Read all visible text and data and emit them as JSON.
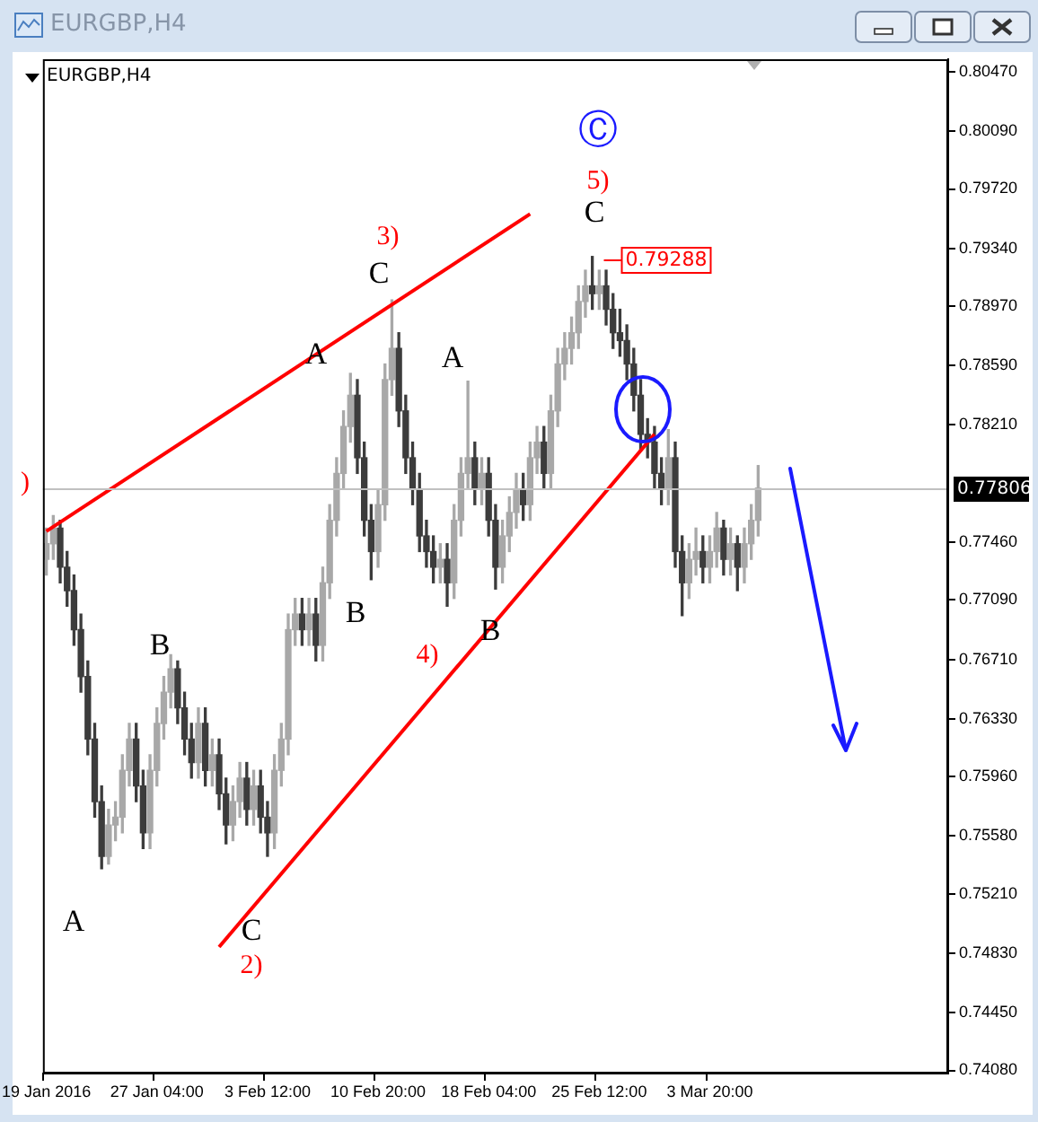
{
  "chart_data": {
    "type": "candlestick",
    "title": "EURGBP,H4",
    "subtitle": "EURGBP,H4",
    "categories": [
      "19 Jan 2016",
      null,
      null,
      null,
      null,
      null,
      null,
      null,
      null,
      null,
      null,
      null,
      null,
      null,
      null,
      null,
      "27 Jan 04:00",
      null,
      null,
      null,
      null,
      null,
      null,
      null,
      null,
      null,
      null,
      null,
      null,
      null,
      null,
      null,
      "3 Feb 12:00",
      null,
      null,
      null,
      null,
      null,
      null,
      null,
      null,
      null,
      null,
      null,
      null,
      null,
      null,
      null,
      "10 Feb 20:00",
      null,
      null,
      null,
      null,
      null,
      null,
      null,
      null,
      null,
      null,
      null,
      null,
      null,
      null,
      null,
      "18 Feb 04:00",
      null,
      null,
      null,
      null,
      null,
      null,
      null,
      null,
      null,
      null,
      null,
      null,
      null,
      null,
      null,
      "25 Feb 12:00",
      null,
      null,
      null,
      null,
      null,
      null,
      null,
      null,
      null,
      null,
      null,
      null,
      null,
      null,
      null,
      "3 Mar 20:00",
      null,
      null,
      null,
      null,
      null,
      null,
      null,
      null,
      null,
      null,
      null,
      null,
      null,
      null,
      null,
      null,
      null,
      null,
      null,
      null,
      null,
      null,
      null,
      null,
      null,
      null,
      null,
      null,
      null,
      null,
      null,
      null,
      null,
      null
    ],
    "ohlc": [
      [
        0.7735,
        0.7755,
        0.7725,
        0.7745
      ],
      [
        0.7745,
        0.7763,
        0.7735,
        0.7755
      ],
      [
        0.7755,
        0.776,
        0.772,
        0.773
      ],
      [
        0.773,
        0.774,
        0.7705,
        0.7715
      ],
      [
        0.7715,
        0.7725,
        0.768,
        0.769
      ],
      [
        0.769,
        0.77,
        0.765,
        0.766
      ],
      [
        0.766,
        0.767,
        0.761,
        0.762
      ],
      [
        0.762,
        0.763,
        0.757,
        0.758
      ],
      [
        0.758,
        0.759,
        0.7537,
        0.7545
      ],
      [
        0.7545,
        0.7575,
        0.754,
        0.7565
      ],
      [
        0.7565,
        0.758,
        0.7555,
        0.757
      ],
      [
        0.757,
        0.761,
        0.756,
        0.76
      ],
      [
        0.76,
        0.763,
        0.759,
        0.762
      ],
      [
        0.762,
        0.763,
        0.758,
        0.759
      ],
      [
        0.759,
        0.76,
        0.755,
        0.756
      ],
      [
        0.756,
        0.761,
        0.755,
        0.76
      ],
      [
        0.76,
        0.764,
        0.759,
        0.763
      ],
      [
        0.763,
        0.766,
        0.762,
        0.765
      ],
      [
        0.765,
        0.7674,
        0.764,
        0.7665
      ],
      [
        0.7665,
        0.767,
        0.763,
        0.764
      ],
      [
        0.764,
        0.765,
        0.761,
        0.762
      ],
      [
        0.762,
        0.763,
        0.7595,
        0.7605
      ],
      [
        0.7605,
        0.764,
        0.7595,
        0.763
      ],
      [
        0.763,
        0.764,
        0.759,
        0.76
      ],
      [
        0.76,
        0.762,
        0.759,
        0.761
      ],
      [
        0.761,
        0.762,
        0.7575,
        0.7585
      ],
      [
        0.7585,
        0.7595,
        0.7553,
        0.7565
      ],
      [
        0.7565,
        0.759,
        0.7555,
        0.758
      ],
      [
        0.758,
        0.7605,
        0.757,
        0.7595
      ],
      [
        0.7595,
        0.7605,
        0.7565,
        0.7575
      ],
      [
        0.7575,
        0.76,
        0.7565,
        0.759
      ],
      [
        0.759,
        0.76,
        0.756,
        0.757
      ],
      [
        0.757,
        0.758,
        0.7545,
        0.756
      ],
      [
        0.756,
        0.761,
        0.755,
        0.76
      ],
      [
        0.76,
        0.763,
        0.759,
        0.762
      ],
      [
        0.762,
        0.77,
        0.761,
        0.769
      ],
      [
        0.769,
        0.771,
        0.768,
        0.77
      ],
      [
        0.77,
        0.771,
        0.768,
        0.769
      ],
      [
        0.769,
        0.771,
        0.768,
        0.77
      ],
      [
        0.77,
        0.771,
        0.767,
        0.768
      ],
      [
        0.768,
        0.773,
        0.767,
        0.772
      ],
      [
        0.772,
        0.777,
        0.771,
        0.776
      ],
      [
        0.776,
        0.78,
        0.775,
        0.779
      ],
      [
        0.779,
        0.783,
        0.778,
        0.782
      ],
      [
        0.782,
        0.7854,
        0.781,
        0.784
      ],
      [
        0.784,
        0.785,
        0.779,
        0.78
      ],
      [
        0.78,
        0.781,
        0.775,
        0.776
      ],
      [
        0.776,
        0.777,
        0.7722,
        0.774
      ],
      [
        0.774,
        0.778,
        0.773,
        0.777
      ],
      [
        0.777,
        0.786,
        0.776,
        0.785
      ],
      [
        0.785,
        0.7901,
        0.784,
        0.787
      ],
      [
        0.787,
        0.788,
        0.782,
        0.783
      ],
      [
        0.783,
        0.784,
        0.779,
        0.78
      ],
      [
        0.78,
        0.781,
        0.777,
        0.778
      ],
      [
        0.778,
        0.779,
        0.774,
        0.775
      ],
      [
        0.775,
        0.776,
        0.773,
        0.774
      ],
      [
        0.774,
        0.775,
        0.772,
        0.773
      ],
      [
        0.773,
        0.7745,
        0.772,
        0.7735
      ],
      [
        0.7735,
        0.7745,
        0.7705,
        0.772
      ],
      [
        0.772,
        0.777,
        0.771,
        0.776
      ],
      [
        0.776,
        0.78,
        0.775,
        0.779
      ],
      [
        0.779,
        0.7849,
        0.778,
        0.78
      ],
      [
        0.78,
        0.781,
        0.777,
        0.778
      ],
      [
        0.778,
        0.78,
        0.777,
        0.779
      ],
      [
        0.779,
        0.78,
        0.775,
        0.776
      ],
      [
        0.776,
        0.777,
        0.7716,
        0.773
      ],
      [
        0.773,
        0.776,
        0.772,
        0.775
      ],
      [
        0.775,
        0.7775,
        0.774,
        0.7765
      ],
      [
        0.7765,
        0.779,
        0.7755,
        0.778
      ],
      [
        0.778,
        0.779,
        0.776,
        0.777
      ],
      [
        0.777,
        0.781,
        0.776,
        0.78
      ],
      [
        0.78,
        0.782,
        0.779,
        0.781
      ],
      [
        0.781,
        0.782,
        0.778,
        0.779
      ],
      [
        0.779,
        0.784,
        0.778,
        0.783
      ],
      [
        0.783,
        0.787,
        0.782,
        0.786
      ],
      [
        0.786,
        0.788,
        0.785,
        0.787
      ],
      [
        0.787,
        0.789,
        0.786,
        0.788
      ],
      [
        0.788,
        0.791,
        0.787,
        0.79
      ],
      [
        0.79,
        0.792,
        0.789,
        0.791
      ],
      [
        0.791,
        0.79288,
        0.7895,
        0.7905
      ],
      [
        0.7905,
        0.792,
        0.7895,
        0.791
      ],
      [
        0.791,
        0.792,
        0.7885,
        0.7895
      ],
      [
        0.7895,
        0.7905,
        0.787,
        0.788
      ],
      [
        0.788,
        0.7895,
        0.7865,
        0.7875
      ],
      [
        0.7875,
        0.7885,
        0.785,
        0.786
      ],
      [
        0.786,
        0.787,
        0.783,
        0.784
      ],
      [
        0.784,
        0.785,
        0.7805,
        0.7815
      ],
      [
        0.7815,
        0.7825,
        0.78,
        0.781
      ],
      [
        0.781,
        0.782,
        0.778,
        0.779
      ],
      [
        0.779,
        0.78,
        0.777,
        0.778
      ],
      [
        0.778,
        0.7818,
        0.777,
        0.78
      ],
      [
        0.78,
        0.781,
        0.773,
        0.774
      ],
      [
        0.774,
        0.775,
        0.7699,
        0.772
      ],
      [
        0.772,
        0.7745,
        0.771,
        0.7735
      ],
      [
        0.7735,
        0.7755,
        0.7725,
        0.774
      ],
      [
        0.774,
        0.775,
        0.772,
        0.773
      ],
      [
        0.773,
        0.775,
        0.772,
        0.774
      ],
      [
        0.774,
        0.7765,
        0.773,
        0.7755
      ],
      [
        0.7755,
        0.776,
        0.7725,
        0.7735
      ],
      [
        0.7735,
        0.7755,
        0.7725,
        0.7745
      ],
      [
        0.7745,
        0.775,
        0.7715,
        0.773
      ],
      [
        0.773,
        0.7755,
        0.772,
        0.7745
      ],
      [
        0.7745,
        0.777,
        0.7735,
        0.776
      ],
      [
        0.776,
        0.7795,
        0.775,
        0.77806
      ],
      null,
      null,
      null,
      null,
      null,
      null,
      null,
      null,
      null,
      null,
      null,
      null,
      null,
      null,
      null,
      null,
      null,
      null,
      null,
      null,
      null,
      null,
      null,
      null,
      null,
      null,
      null
    ],
    "series": [
      {
        "type": "line",
        "color": "#ff0000",
        "values": [
          0.7753,
          null,
          null,
          null,
          null,
          null,
          null,
          null,
          null,
          null,
          null,
          null,
          null,
          null,
          null,
          null,
          null,
          null,
          null,
          null,
          null,
          null,
          null,
          null,
          null,
          null,
          null,
          null,
          null,
          null,
          null,
          null,
          null,
          null,
          null,
          null,
          null,
          null,
          null,
          null,
          null,
          null,
          null,
          null,
          null,
          null,
          null,
          null,
          null,
          null,
          null,
          null,
          null,
          null,
          null,
          null,
          null,
          null,
          null,
          null,
          null,
          null,
          null,
          null,
          null,
          null,
          null,
          null,
          null,
          null,
          0.7956,
          null,
          null,
          null,
          null,
          null,
          null,
          null,
          null,
          null,
          null,
          null,
          null,
          null,
          null,
          null,
          null,
          null,
          null,
          null,
          null,
          null,
          null,
          null,
          null,
          null,
          null,
          null,
          null,
          null,
          null,
          null,
          null,
          null,
          null,
          null,
          null,
          null,
          null,
          null,
          null,
          null,
          null,
          null,
          null,
          null,
          null,
          null,
          null,
          null,
          null,
          null,
          null,
          null,
          null,
          null,
          null,
          null,
          null,
          null,
          null
        ]
      },
      {
        "type": "line",
        "color": "#ff0000",
        "values": [
          null,
          null,
          null,
          null,
          null,
          null,
          null,
          null,
          null,
          null,
          null,
          null,
          null,
          null,
          null,
          null,
          null,
          null,
          null,
          null,
          null,
          null,
          null,
          null,
          null,
          0.7487,
          null,
          null,
          null,
          null,
          null,
          null,
          null,
          null,
          null,
          null,
          null,
          null,
          null,
          null,
          null,
          null,
          null,
          null,
          null,
          null,
          null,
          null,
          null,
          null,
          null,
          null,
          null,
          null,
          null,
          null,
          null,
          null,
          null,
          null,
          null,
          null,
          null,
          null,
          null,
          null,
          null,
          null,
          null,
          null,
          null,
          null,
          null,
          null,
          null,
          null,
          null,
          null,
          null,
          null,
          null,
          null,
          null,
          null,
          null,
          null,
          null,
          null,
          0.7815,
          null,
          null,
          null,
          null,
          null,
          null,
          null,
          null,
          null,
          null,
          null,
          null,
          null,
          null,
          null,
          null,
          null,
          null,
          null,
          null,
          null,
          null,
          null,
          null,
          null,
          null,
          null,
          null,
          null,
          null,
          null,
          null,
          null,
          null,
          null,
          null,
          null,
          null,
          null,
          null,
          null,
          null
        ]
      }
    ],
    "ylim": [
      0.7406,
      0.8055
    ],
    "yticks": [
      {
        "value": 0.8047,
        "label": "0.80470"
      },
      {
        "value": 0.8009,
        "label": "0.80090"
      },
      {
        "value": 0.7972,
        "label": "0.79720"
      },
      {
        "value": 0.7934,
        "label": "0.79340"
      },
      {
        "value": 0.7897,
        "label": "0.78970"
      },
      {
        "value": 0.7859,
        "label": "0.78590"
      },
      {
        "value": 0.7821,
        "label": "0.78210"
      },
      {
        "value": 0.7746,
        "label": "0.77460"
      },
      {
        "value": 0.7709,
        "label": "0.77090"
      },
      {
        "value": 0.7671,
        "label": "0.76710"
      },
      {
        "value": 0.7633,
        "label": "0.76330"
      },
      {
        "value": 0.7596,
        "label": "0.75960"
      },
      {
        "value": 0.7558,
        "label": "0.75580"
      },
      {
        "value": 0.7521,
        "label": "0.75210"
      },
      {
        "value": 0.7483,
        "label": "0.74830"
      },
      {
        "value": 0.7445,
        "label": "0.74450"
      },
      {
        "value": 0.7408,
        "label": "0.74080"
      }
    ],
    "ref_lines": [
      {
        "axis": "y",
        "value": 0.77806,
        "label": "0.77806",
        "color": "#c0c0c0"
      }
    ],
    "annotations": [
      "Ⓒ",
      "5)",
      "C",
      "3)",
      "C",
      "A",
      "A",
      "B",
      "B",
      "4)",
      "B",
      "A",
      "C",
      "2)",
      ")",
      "0.79288"
    ],
    "grid": false,
    "legend": false
  }
}
